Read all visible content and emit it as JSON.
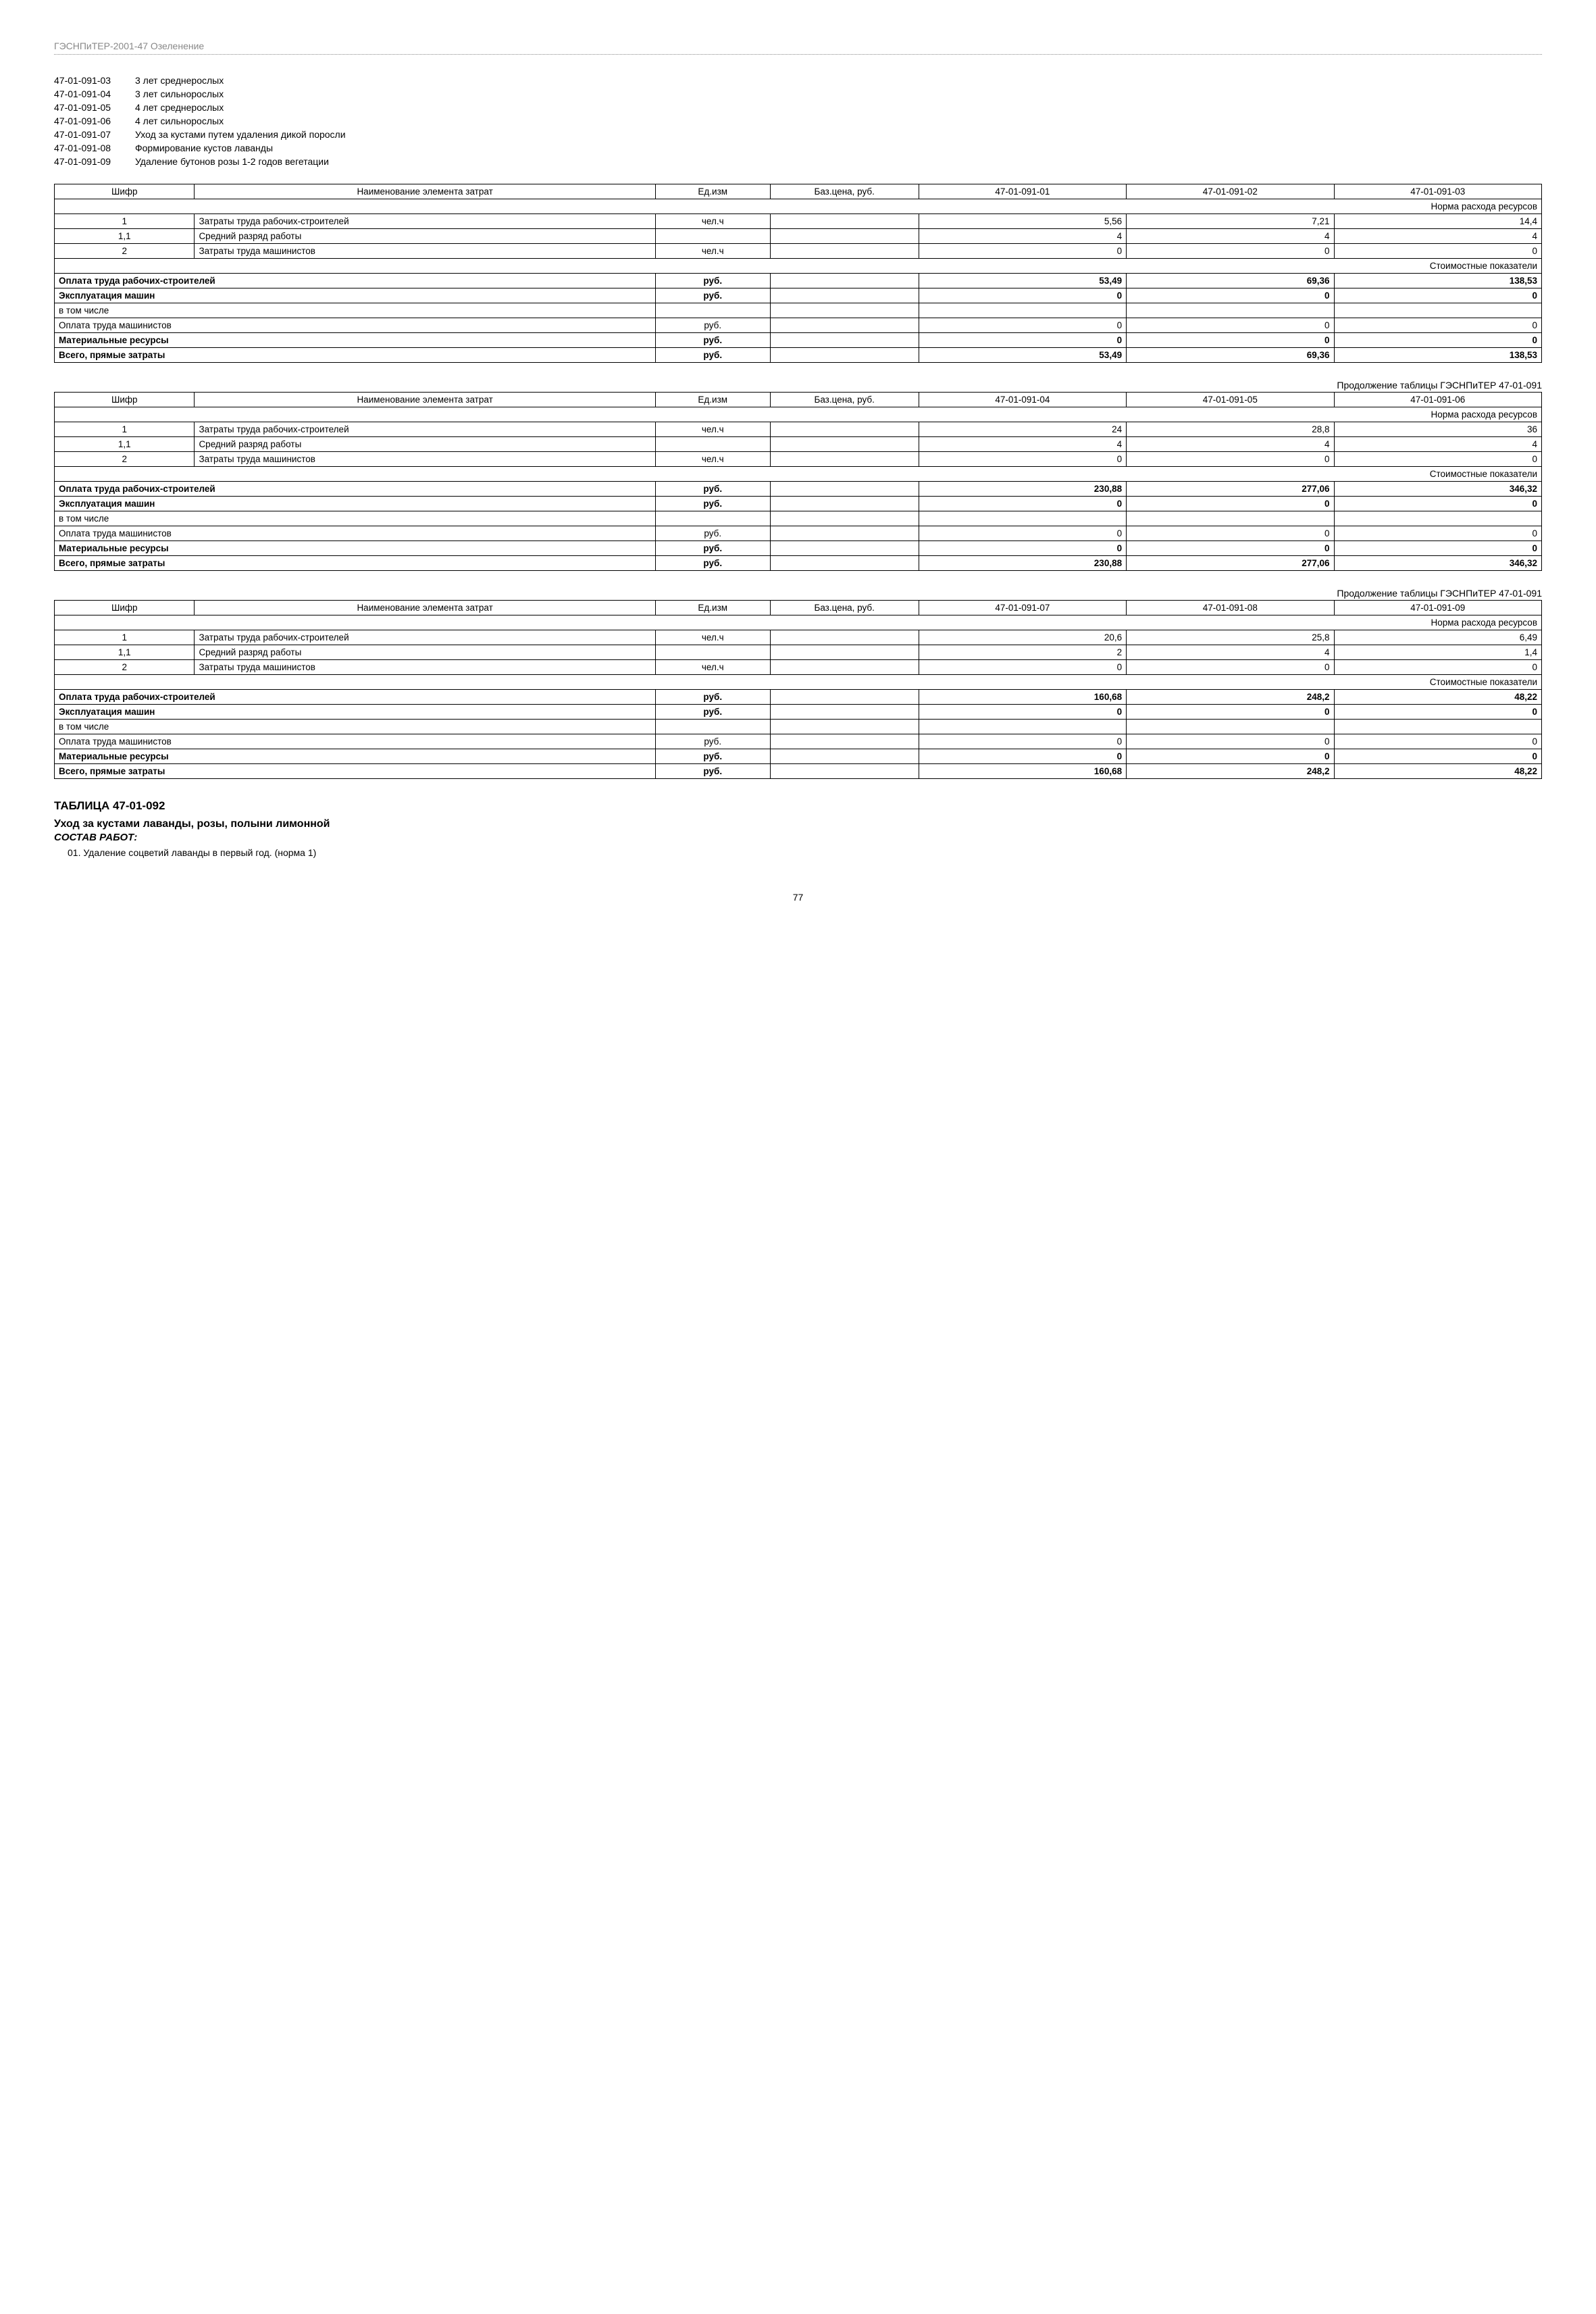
{
  "header": "ГЭСНПиТЕР-2001-47 Озеленение",
  "codeList": [
    {
      "code": "47-01-091-03",
      "desc": "3 лет среднерослых"
    },
    {
      "code": "47-01-091-04",
      "desc": "3 лет сильнорослых"
    },
    {
      "code": "47-01-091-05",
      "desc": "4 лет среднерослых"
    },
    {
      "code": "47-01-091-06",
      "desc": "4 лет сильнорослых"
    },
    {
      "code": "47-01-091-07",
      "desc": "Уход за кустами путем удаления дикой поросли"
    },
    {
      "code": "47-01-091-08",
      "desc": "Формирование кустов лаванды"
    },
    {
      "code": "47-01-091-09",
      "desc": "Удаление бутонов розы 1-2 годов вегетации"
    }
  ],
  "tableHeaders": {
    "shifr": "Шифр",
    "name": "Наименование элемента затрат",
    "unit": "Ед.изм",
    "price": "Баз.цена, руб.",
    "normSection": "Норма расхода ресурсов",
    "costSection": "Стоимостные показатели"
  },
  "rowLabels": {
    "r1": "Затраты труда рабочих-строителей",
    "r1_1": "Средний разряд работы",
    "r2": "Затраты труда машинистов",
    "pay": "Оплата труда рабочих-строителей",
    "mach": "Эксплуатация машин",
    "incl": "в том числе",
    "machPay": "Оплата труда машинистов",
    "mat": "Материальные ресурсы",
    "total": "Всего, прямые затраты",
    "unit_chel": "чел.ч",
    "unit_rub": "руб."
  },
  "contLabel": "Продолжение таблицы ГЭСНПиТЕР 47-01-091",
  "tables": [
    {
      "cols": [
        "47-01-091-01",
        "47-01-091-02",
        "47-01-091-03"
      ],
      "norm": {
        "r1": [
          "5,56",
          "7,21",
          "14,4"
        ],
        "r1_1": [
          "4",
          "4",
          "4"
        ],
        "r2": [
          "0",
          "0",
          "0"
        ]
      },
      "cost": {
        "pay": [
          "53,49",
          "69,36",
          "138,53"
        ],
        "mach": [
          "0",
          "0",
          "0"
        ],
        "machPay": [
          "0",
          "0",
          "0"
        ],
        "mat": [
          "0",
          "0",
          "0"
        ],
        "total": [
          "53,49",
          "69,36",
          "138,53"
        ]
      }
    },
    {
      "cols": [
        "47-01-091-04",
        "47-01-091-05",
        "47-01-091-06"
      ],
      "norm": {
        "r1": [
          "24",
          "28,8",
          "36"
        ],
        "r1_1": [
          "4",
          "4",
          "4"
        ],
        "r2": [
          "0",
          "0",
          "0"
        ]
      },
      "cost": {
        "pay": [
          "230,88",
          "277,06",
          "346,32"
        ],
        "mach": [
          "0",
          "0",
          "0"
        ],
        "machPay": [
          "0",
          "0",
          "0"
        ],
        "mat": [
          "0",
          "0",
          "0"
        ],
        "total": [
          "230,88",
          "277,06",
          "346,32"
        ]
      }
    },
    {
      "cols": [
        "47-01-091-07",
        "47-01-091-08",
        "47-01-091-09"
      ],
      "norm": {
        "r1": [
          "20,6",
          "25,8",
          "6,49"
        ],
        "r1_1": [
          "2",
          "4",
          "1,4"
        ],
        "r2": [
          "0",
          "0",
          "0"
        ]
      },
      "cost": {
        "pay": [
          "160,68",
          "248,2",
          "48,22"
        ],
        "mach": [
          "0",
          "0",
          "0"
        ],
        "machPay": [
          "0",
          "0",
          "0"
        ],
        "mat": [
          "0",
          "0",
          "0"
        ],
        "total": [
          "160,68",
          "248,2",
          "48,22"
        ]
      }
    }
  ],
  "nextTable": {
    "title": "ТАБЛИЦА 47-01-092",
    "subtitle": "Уход за кустами лаванды, розы, полыни лимонной",
    "sostav": "СОСТАВ РАБОТ:",
    "items": [
      "01. Удаление соцветий лаванды в первый год. (норма 1)"
    ]
  },
  "pageNum": "77"
}
